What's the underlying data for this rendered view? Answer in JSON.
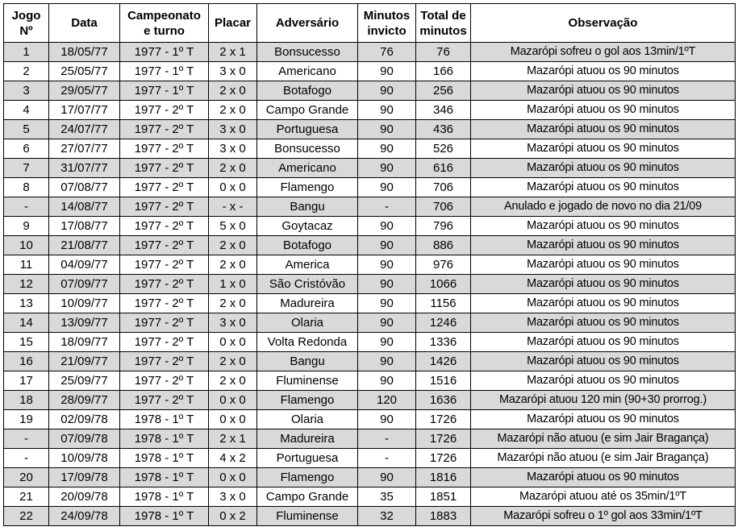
{
  "headers": {
    "jogo_1": "Jogo",
    "jogo_2": "Nº",
    "data": "Data",
    "camp_1": "Campeonato",
    "camp_2": "e turno",
    "placar": "Placar",
    "adversario": "Adversário",
    "min_1": "Minutos",
    "min_2": "invicto",
    "total_1": "Total de",
    "total_2": "minutos",
    "obs": "Observação"
  },
  "shade_color": "#d9d9d9",
  "rows": [
    [
      "1",
      "18/05/77",
      "1977 - 1º T",
      "2 x 1",
      "Bonsucesso",
      "76",
      "76",
      "Mazarópi sofreu o gol aos 13min/1ºT"
    ],
    [
      "2",
      "25/05/77",
      "1977 - 1º T",
      "3 x 0",
      "Americano",
      "90",
      "166",
      "Mazarópi atuou os 90 minutos"
    ],
    [
      "3",
      "29/05/77",
      "1977 - 1º T",
      "2 x 0",
      "Botafogo",
      "90",
      "256",
      "Mazarópi atuou os 90 minutos"
    ],
    [
      "4",
      "17/07/77",
      "1977 - 2º T",
      "2 x 0",
      "Campo Grande",
      "90",
      "346",
      "Mazarópi atuou os 90 minutos"
    ],
    [
      "5",
      "24/07/77",
      "1977 - 2º T",
      "3 x 0",
      "Portuguesa",
      "90",
      "436",
      "Mazarópi atuou os 90 minutos"
    ],
    [
      "6",
      "27/07/77",
      "1977 - 2º T",
      "3 x 0",
      "Bonsucesso",
      "90",
      "526",
      "Mazarópi atuou os 90 minutos"
    ],
    [
      "7",
      "31/07/77",
      "1977 - 2º T",
      "2 x 0",
      "Americano",
      "90",
      "616",
      "Mazarópi atuou os 90 minutos"
    ],
    [
      "8",
      "07/08/77",
      "1977 - 2º T",
      "0 x 0",
      "Flamengo",
      "90",
      "706",
      "Mazarópi atuou os 90 minutos"
    ],
    [
      "-",
      "14/08/77",
      "1977 - 2º T",
      "- x -",
      "Bangu",
      "-",
      "706",
      "Anulado e jogado de novo no dia 21/09"
    ],
    [
      "9",
      "17/08/77",
      "1977 - 2º T",
      "5 x 0",
      "Goytacaz",
      "90",
      "796",
      "Mazarópi atuou os 90 minutos"
    ],
    [
      "10",
      "21/08/77",
      "1977 - 2º T",
      "2 x 0",
      "Botafogo",
      "90",
      "886",
      "Mazarópi atuou os 90 minutos"
    ],
    [
      "11",
      "04/09/77",
      "1977 - 2º T",
      "2 x 0",
      "America",
      "90",
      "976",
      "Mazarópi atuou os 90 minutos"
    ],
    [
      "12",
      "07/09/77",
      "1977 - 2º T",
      "1 x 0",
      "São Cristóvão",
      "90",
      "1066",
      "Mazarópi atuou os 90 minutos"
    ],
    [
      "13",
      "10/09/77",
      "1977 - 2º T",
      "2 x 0",
      "Madureira",
      "90",
      "1156",
      "Mazarópi atuou os 90 minutos"
    ],
    [
      "14",
      "13/09/77",
      "1977 - 2º T",
      "3 x 0",
      "Olaria",
      "90",
      "1246",
      "Mazarópi atuou os 90 minutos"
    ],
    [
      "15",
      "18/09/77",
      "1977 - 2º T",
      "0 x 0",
      "Volta Redonda",
      "90",
      "1336",
      "Mazarópi atuou os 90 minutos"
    ],
    [
      "16",
      "21/09/77",
      "1977 - 2º T",
      "2 x 0",
      "Bangu",
      "90",
      "1426",
      "Mazarópi atuou os 90 minutos"
    ],
    [
      "17",
      "25/09/77",
      "1977 - 2º T",
      "2 x 0",
      "Fluminense",
      "90",
      "1516",
      "Mazarópi atuou os 90 minutos"
    ],
    [
      "18",
      "28/09/77",
      "1977 - 2º T",
      "0 x 0",
      "Flamengo",
      "120",
      "1636",
      "Mazarópi atuou 120 min (90+30 prorrog.)"
    ],
    [
      "19",
      "02/09/78",
      "1978 - 1º T",
      "0 x 0",
      "Olaria",
      "90",
      "1726",
      "Mazarópi atuou os 90 minutos"
    ],
    [
      "-",
      "07/09/78",
      "1978 - 1º T",
      "2 x 1",
      "Madureira",
      "-",
      "1726",
      "Mazarópi não atuou (e sim Jair Bragança)"
    ],
    [
      "-",
      "10/09/78",
      "1978 - 1º T",
      "4 x 2",
      "Portuguesa",
      "-",
      "1726",
      "Mazarópi não atuou (e sim Jair Bragança)"
    ],
    [
      "20",
      "17/09/78",
      "1978 - 1º T",
      "0 x 0",
      "Flamengo",
      "90",
      "1816",
      "Mazarópi atuou os 90 minutos"
    ],
    [
      "21",
      "20/09/78",
      "1978 - 1º T",
      "3 x 0",
      "Campo Grande",
      "35",
      "1851",
      "Mazarópi atuou até os 35min/1ºT"
    ],
    [
      "22",
      "24/09/78",
      "1978 - 1º T",
      "0 x 2",
      "Fluminense",
      "32",
      "1883",
      "Mazarópi sofreu o 1º gol aos 33min/1ºT"
    ]
  ]
}
